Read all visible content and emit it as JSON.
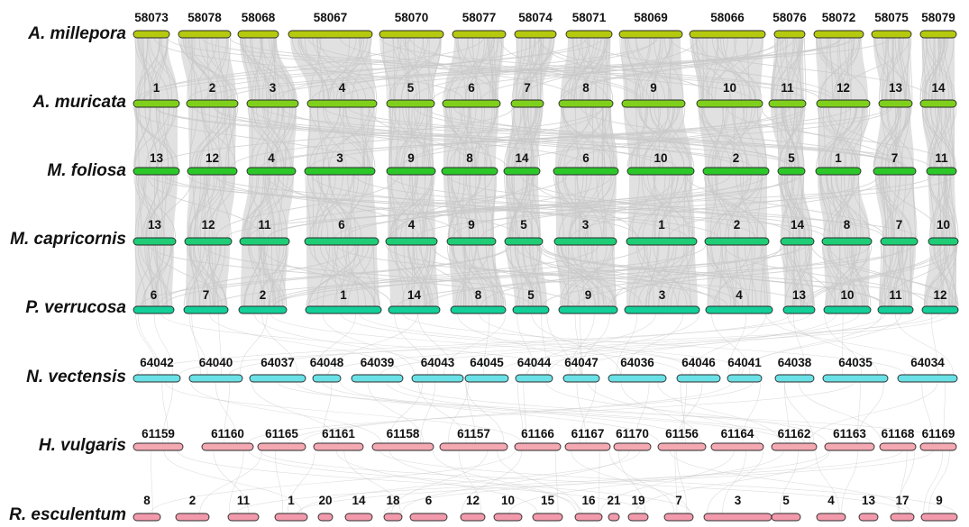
{
  "colors": {
    "background": "#ffffff",
    "link": "#c8c8c8",
    "outline": "#2a2a2a",
    "label": "#111111"
  },
  "tracks": [
    {
      "species": "A. millepora",
      "color": "#b5c90e",
      "chromosomes": [
        "58073",
        "58078",
        "58068",
        "58067",
        "58070",
        "58077",
        "58074",
        "58071",
        "58069",
        "58066",
        "58076",
        "58072",
        "58075",
        "58079"
      ]
    },
    {
      "species": "A. muricata",
      "color": "#7fd01c",
      "chromosomes": [
        "1",
        "2",
        "3",
        "4",
        "5",
        "6",
        "7",
        "8",
        "9",
        "10",
        "11",
        "12",
        "13",
        "14"
      ]
    },
    {
      "species": "M. foliosa",
      "color": "#2cc82a",
      "chromosomes": [
        "13",
        "12",
        "4",
        "3",
        "9",
        "8",
        "14",
        "6",
        "10",
        "2",
        "5",
        "1",
        "7",
        "11"
      ]
    },
    {
      "species": "M. capricornis",
      "color": "#1ecd76",
      "chromosomes": [
        "13",
        "12",
        "11",
        "6",
        "4",
        "9",
        "5",
        "3",
        "1",
        "2",
        "14",
        "8",
        "7",
        "10"
      ]
    },
    {
      "species": "P. verrucosa",
      "color": "#13cf98",
      "chromosomes": [
        "6",
        "7",
        "2",
        "1",
        "14",
        "8",
        "5",
        "9",
        "3",
        "4",
        "13",
        "10",
        "11",
        "12"
      ]
    },
    {
      "species": "N. vectensis",
      "color": "#6ae1e6",
      "chromosomes": [
        "64042",
        "64040",
        "64037",
        "64048",
        "64039",
        "64043",
        "64045",
        "64044",
        "64047",
        "64036",
        "64046",
        "64041",
        "64038",
        "64035",
        "64034"
      ]
    },
    {
      "species": "H. vulgaris",
      "color": "#f4a8b2",
      "chromosomes": [
        "61159",
        "61160",
        "61165",
        "61161",
        "61158",
        "61157",
        "61166",
        "61167",
        "61170",
        "61156",
        "61164",
        "61162",
        "61163",
        "61168",
        "61169"
      ]
    },
    {
      "species": "R. esculentum",
      "color": "#f29aab",
      "chromosomes": [
        "8",
        "2",
        "11",
        "1",
        "20",
        "14",
        "18",
        "6",
        "12",
        "10",
        "15",
        "16",
        "21",
        "19",
        "7",
        "3",
        "5",
        "4",
        "13",
        "17",
        "9"
      ]
    }
  ]
}
